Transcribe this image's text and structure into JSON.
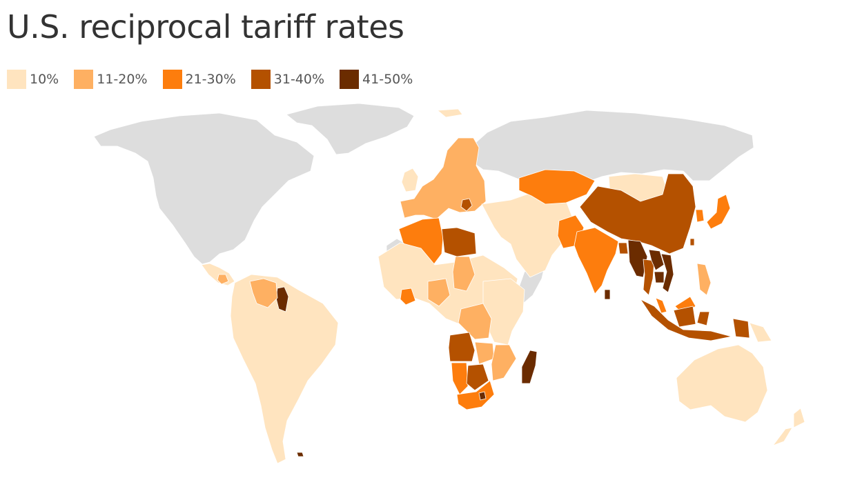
{
  "title": "U.S. reciprocal tariff rates",
  "legend": [
    {
      "label": "10%",
      "color": "#ffe4bf"
    },
    {
      "label": "11-20%",
      "color": "#feb062"
    },
    {
      "label": "21-30%",
      "color": "#fd7d0d"
    },
    {
      "label": "31-40%",
      "color": "#b45100"
    },
    {
      "label": "41-50%",
      "color": "#6b2c00"
    }
  ],
  "colors": {
    "no_data": "#dddddd",
    "border": "#ffffff"
  },
  "regions": [
    {
      "name": "South America",
      "bin": "10%"
    },
    {
      "name": "Guyana",
      "bin": "41-50%"
    },
    {
      "name": "Venezuela",
      "bin": "11-20%"
    },
    {
      "name": "Central America",
      "bin": "10%"
    },
    {
      "name": "Nicaragua",
      "bin": "11-20%"
    },
    {
      "name": "Western Europe",
      "bin": "11-20%"
    },
    {
      "name": "United Kingdom",
      "bin": "10%"
    },
    {
      "name": "Serbia",
      "bin": "31-40%"
    },
    {
      "name": "Algeria",
      "bin": "21-30%"
    },
    {
      "name": "Libya",
      "bin": "31-40%"
    },
    {
      "name": "Syria",
      "bin": "41-50%"
    },
    {
      "name": "Iraq",
      "bin": "31-40%"
    },
    {
      "name": "Middle East",
      "bin": "10%"
    },
    {
      "name": "Sahel and West Africa",
      "bin": "10%"
    },
    {
      "name": "Ivory Coast",
      "bin": "21-30%"
    },
    {
      "name": "Chad",
      "bin": "11-20%"
    },
    {
      "name": "Nigeria",
      "bin": "11-20%"
    },
    {
      "name": "East Africa",
      "bin": "10%"
    },
    {
      "name": "DR Congo",
      "bin": "11-20%"
    },
    {
      "name": "Angola",
      "bin": "31-40%"
    },
    {
      "name": "Zambia",
      "bin": "11-20%"
    },
    {
      "name": "Mozambique",
      "bin": "11-20%"
    },
    {
      "name": "Namibia",
      "bin": "21-30%"
    },
    {
      "name": "Botswana",
      "bin": "31-40%"
    },
    {
      "name": "South Africa",
      "bin": "21-30%"
    },
    {
      "name": "Lesotho",
      "bin": "41-50%"
    },
    {
      "name": "Madagascar",
      "bin": "41-50%"
    },
    {
      "name": "Kazakhstan",
      "bin": "21-30%"
    },
    {
      "name": "Mongolia",
      "bin": "10%"
    },
    {
      "name": "China",
      "bin": "31-40%"
    },
    {
      "name": "Pakistan",
      "bin": "21-30%"
    },
    {
      "name": "India",
      "bin": "21-30%"
    },
    {
      "name": "Sri Lanka",
      "bin": "41-50%"
    },
    {
      "name": "Bangladesh",
      "bin": "31-40%"
    },
    {
      "name": "Myanmar",
      "bin": "41-50%"
    },
    {
      "name": "Thailand",
      "bin": "31-40%"
    },
    {
      "name": "Laos",
      "bin": "41-50%"
    },
    {
      "name": "Vietnam",
      "bin": "41-50%"
    },
    {
      "name": "Cambodia",
      "bin": "41-50%"
    },
    {
      "name": "Japan",
      "bin": "21-30%"
    },
    {
      "name": "South Korea",
      "bin": "21-30%"
    },
    {
      "name": "Taiwan",
      "bin": "31-40%"
    },
    {
      "name": "Philippines",
      "bin": "11-20%"
    },
    {
      "name": "Malaysia",
      "bin": "21-30%"
    },
    {
      "name": "Indonesia",
      "bin": "31-40%"
    },
    {
      "name": "Papua New Guinea",
      "bin": "10%"
    },
    {
      "name": "Australia",
      "bin": "10%"
    },
    {
      "name": "New Zealand",
      "bin": "10%"
    },
    {
      "name": "Iceland",
      "bin": "10%"
    },
    {
      "name": "Falkland Islands",
      "bin": "41-50%"
    }
  ]
}
